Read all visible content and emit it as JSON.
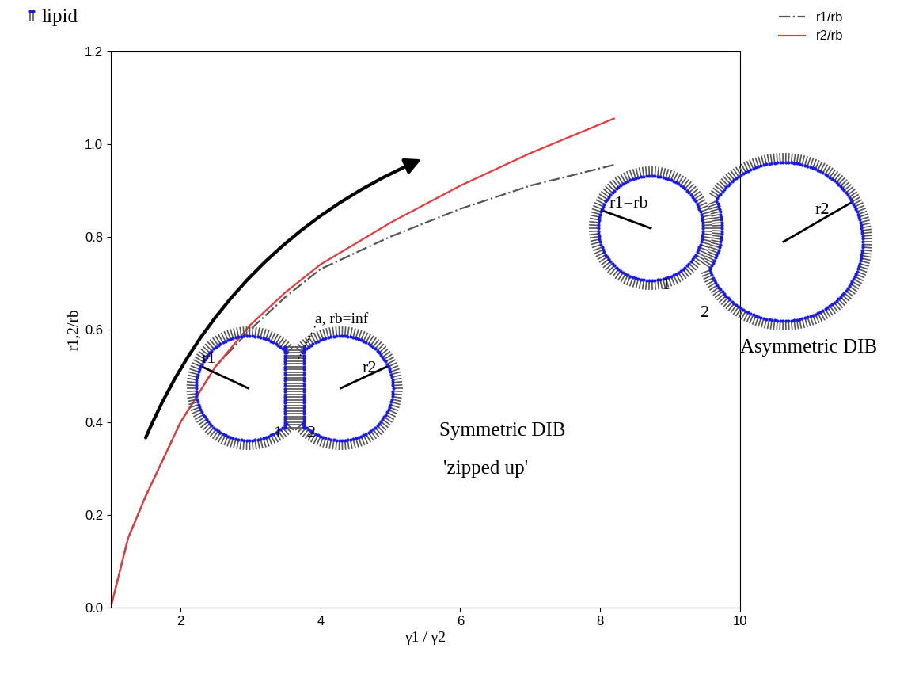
{
  "chart_data": {
    "type": "line",
    "x_label": "γ1 / γ2",
    "y_label": "r1,2/rb",
    "xlim": [
      1,
      10
    ],
    "xticks": [
      2,
      4,
      6,
      8,
      10
    ],
    "ylim": [
      0.0,
      1.2
    ],
    "yticks": [
      0.0,
      0.2,
      0.4,
      0.6,
      0.8,
      1.0,
      1.2
    ],
    "legend": "upper right",
    "series": [
      {
        "name": "r1/rb",
        "color": "#555555",
        "line_style": "dashdot",
        "x": [
          1.0,
          1.25,
          1.5,
          2.0,
          2.5,
          3.0,
          3.5,
          4.0,
          5.0,
          6.0,
          7.0,
          8.2
        ],
        "values": [
          0.0,
          0.15,
          0.24,
          0.4,
          0.52,
          0.6,
          0.67,
          0.73,
          0.8,
          0.86,
          0.91,
          0.955
        ]
      },
      {
        "name": "r2/rb",
        "color": "#e8383b",
        "line_style": "solid",
        "x": [
          1.0,
          1.25,
          1.5,
          2.0,
          2.5,
          3.0,
          3.5,
          4.0,
          5.0,
          6.0,
          7.0,
          8.2
        ],
        "values": [
          0.0,
          0.15,
          0.24,
          0.4,
          0.52,
          0.61,
          0.68,
          0.74,
          0.83,
          0.91,
          0.98,
          1.055
        ]
      }
    ],
    "annotations": {
      "lipid": "lipid",
      "symmetric": {
        "r1": "r1",
        "r2": "r2",
        "drop1": "1",
        "drop2": "2",
        "bilayer": "a, rb=inf",
        "name": "Symmetric DIB",
        "state": "'zipped up'"
      },
      "asymmetric": {
        "r1": "r1=rb",
        "r2": "r2",
        "drop1": "1",
        "drop2": "2",
        "name": "Asymmetric DIB"
      }
    }
  }
}
